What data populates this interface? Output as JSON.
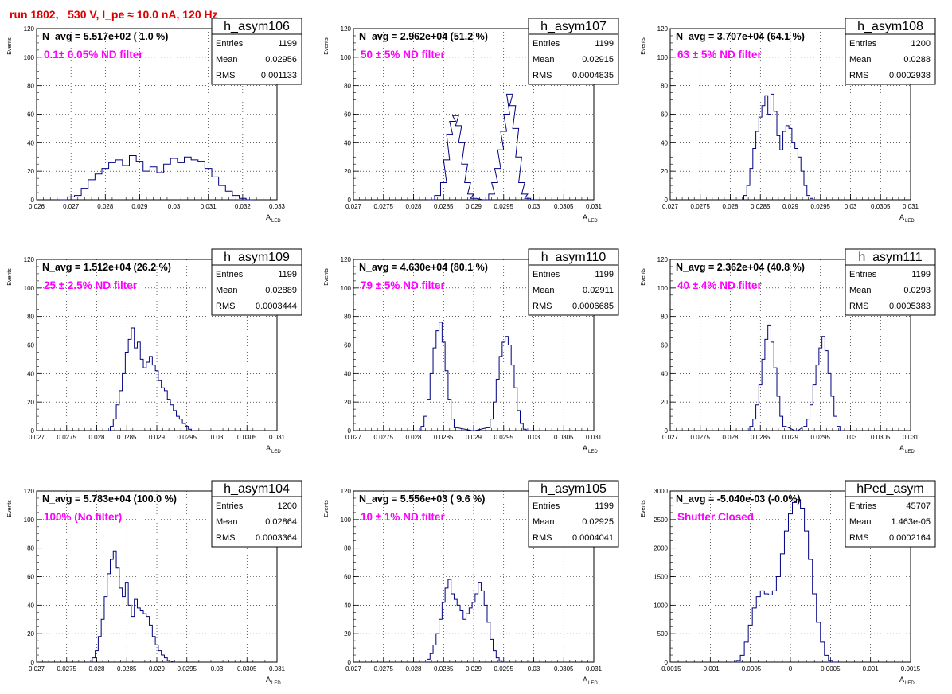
{
  "page": {
    "title": "run 1802,   530 V, I_pe ≈ 10.0 nA, 120 Hz"
  },
  "common": {
    "ylabel": "Events",
    "xlabel_main": "A",
    "xlabel_sub": "LED"
  },
  "stats_labels": [
    "Entries",
    "Mean",
    "RMS"
  ],
  "colors": {
    "hist": "#000080",
    "title": "#e00000",
    "annotation": "#ff00ff"
  },
  "chart_data": [
    {
      "type": "histogram",
      "name": "h_asym106",
      "n_avg": "N_avg = 5.517e+02 ( 1.0 %)",
      "filter": "0.1± 0.05% ND filter",
      "entries": "1199",
      "mean": "0.02956",
      "rms": "0.001133",
      "xlim": [
        0.026,
        0.033
      ],
      "ylim": [
        0,
        120
      ],
      "xticks": [
        "0.026",
        "0.027",
        "0.028",
        "0.029",
        "0.03",
        "0.031",
        "0.032",
        "0.033"
      ],
      "yticks": [
        "0",
        "20",
        "40",
        "60",
        "80",
        "100",
        "120"
      ],
      "points": [
        [
          0.0268,
          0
        ],
        [
          0.027,
          2
        ],
        [
          0.0272,
          3
        ],
        [
          0.0274,
          8
        ],
        [
          0.0276,
          14
        ],
        [
          0.0278,
          18
        ],
        [
          0.028,
          22
        ],
        [
          0.0282,
          26
        ],
        [
          0.0284,
          28
        ],
        [
          0.0286,
          24
        ],
        [
          0.0288,
          31
        ],
        [
          0.029,
          27
        ],
        [
          0.0292,
          20
        ],
        [
          0.0294,
          23
        ],
        [
          0.0296,
          19
        ],
        [
          0.0298,
          25
        ],
        [
          0.03,
          29
        ],
        [
          0.0302,
          26
        ],
        [
          0.0304,
          30
        ],
        [
          0.0306,
          28
        ],
        [
          0.0308,
          27
        ],
        [
          0.031,
          22
        ],
        [
          0.0312,
          16
        ],
        [
          0.0314,
          10
        ],
        [
          0.0316,
          6
        ],
        [
          0.0318,
          3
        ],
        [
          0.032,
          1
        ],
        [
          0.0322,
          0
        ]
      ]
    },
    {
      "type": "histogram",
      "name": "h_asym107",
      "n_avg": "N_avg = 2.962e+04 (51.2 %)",
      "filter": "50 ± 5% ND filter",
      "entries": "1199",
      "mean": "0.02915",
      "rms": "0.0004835",
      "xlim": [
        0.027,
        0.031
      ],
      "ylim": [
        0,
        120
      ],
      "xticks": [
        "0.027",
        "0.0275",
        "0.028",
        "0.0285",
        "0.029",
        "0.0295",
        "0.03",
        "0.0305",
        "0.031"
      ],
      "yticks": [
        "0",
        "20",
        "40",
        "60",
        "80",
        "100",
        "120"
      ],
      "points": [
        [
          0.0283,
          0
        ],
        [
          0.0284,
          3
        ],
        [
          0.0285,
          12
        ],
        [
          0.02855,
          28
        ],
        [
          0.0286,
          46
        ],
        [
          0.02865,
          55
        ],
        [
          0.0287,
          59
        ],
        [
          0.02875,
          52
        ],
        [
          0.0288,
          40
        ],
        [
          0.02885,
          25
        ],
        [
          0.0289,
          12
        ],
        [
          0.02895,
          4
        ],
        [
          0.029,
          1
        ],
        [
          0.0292,
          0
        ],
        [
          0.0293,
          4
        ],
        [
          0.02935,
          12
        ],
        [
          0.0294,
          22
        ],
        [
          0.02945,
          35
        ],
        [
          0.0295,
          48
        ],
        [
          0.02955,
          60
        ],
        [
          0.0296,
          74
        ],
        [
          0.02965,
          66
        ],
        [
          0.0297,
          50
        ],
        [
          0.02975,
          30
        ],
        [
          0.0298,
          12
        ],
        [
          0.02985,
          4
        ],
        [
          0.0299,
          1
        ],
        [
          0.03,
          0
        ]
      ]
    },
    {
      "type": "histogram",
      "name": "h_asym108",
      "n_avg": "N_avg = 3.707e+04 (64.1 %)",
      "filter": "63 ± 5% ND filter",
      "entries": "1200",
      "mean": "0.0288",
      "rms": "0.0002938",
      "xlim": [
        0.027,
        0.031
      ],
      "ylim": [
        0,
        120
      ],
      "xticks": [
        "0.027",
        "0.0275",
        "0.028",
        "0.0285",
        "0.029",
        "0.0295",
        "0.03",
        "0.0305",
        "0.031"
      ],
      "yticks": [
        "0",
        "20",
        "40",
        "60",
        "80",
        "100",
        "120"
      ],
      "points": [
        [
          0.0282,
          0
        ],
        [
          0.02825,
          3
        ],
        [
          0.0283,
          10
        ],
        [
          0.02835,
          22
        ],
        [
          0.0284,
          36
        ],
        [
          0.02845,
          48
        ],
        [
          0.0285,
          58
        ],
        [
          0.02855,
          66
        ],
        [
          0.0286,
          73
        ],
        [
          0.02865,
          60
        ],
        [
          0.0287,
          74
        ],
        [
          0.02875,
          62
        ],
        [
          0.0288,
          45
        ],
        [
          0.02885,
          35
        ],
        [
          0.0289,
          48
        ],
        [
          0.02895,
          52
        ],
        [
          0.029,
          50
        ],
        [
          0.02905,
          40
        ],
        [
          0.0291,
          36
        ],
        [
          0.02915,
          30
        ],
        [
          0.0292,
          20
        ],
        [
          0.02925,
          10
        ],
        [
          0.0293,
          3
        ],
        [
          0.02935,
          1
        ],
        [
          0.0294,
          0
        ]
      ]
    },
    {
      "type": "histogram",
      "name": "h_asym109",
      "n_avg": "N_avg = 1.512e+04 (26.2 %)",
      "filter": "25 ± 2.5% ND filter",
      "entries": "1199",
      "mean": "0.02889",
      "rms": "0.0003444",
      "xlim": [
        0.027,
        0.031
      ],
      "ylim": [
        0,
        120
      ],
      "xticks": [
        "0.027",
        "0.0275",
        "0.028",
        "0.0285",
        "0.029",
        "0.0295",
        "0.03",
        "0.0305",
        "0.031"
      ],
      "yticks": [
        "0",
        "20",
        "40",
        "60",
        "80",
        "100",
        "120"
      ],
      "points": [
        [
          0.0282,
          0
        ],
        [
          0.02825,
          3
        ],
        [
          0.0283,
          8
        ],
        [
          0.02835,
          18
        ],
        [
          0.0284,
          28
        ],
        [
          0.02845,
          40
        ],
        [
          0.0285,
          55
        ],
        [
          0.02855,
          64
        ],
        [
          0.0286,
          72
        ],
        [
          0.02865,
          58
        ],
        [
          0.0287,
          62
        ],
        [
          0.02875,
          50
        ],
        [
          0.0288,
          44
        ],
        [
          0.02885,
          48
        ],
        [
          0.0289,
          52
        ],
        [
          0.02895,
          46
        ],
        [
          0.029,
          42
        ],
        [
          0.02905,
          35
        ],
        [
          0.0291,
          30
        ],
        [
          0.02915,
          28
        ],
        [
          0.0292,
          22
        ],
        [
          0.02925,
          18
        ],
        [
          0.0293,
          14
        ],
        [
          0.02935,
          10
        ],
        [
          0.0294,
          8
        ],
        [
          0.02945,
          5
        ],
        [
          0.0295,
          3
        ],
        [
          0.02955,
          1
        ],
        [
          0.0296,
          0
        ]
      ]
    },
    {
      "type": "histogram",
      "name": "h_asym110",
      "n_avg": "N_avg = 4.630e+04 (80.1 %)",
      "filter": "79 ± 5% ND filter",
      "entries": "1199",
      "mean": "0.02911",
      "rms": "0.0006685",
      "xlim": [
        0.027,
        0.031
      ],
      "ylim": [
        0,
        120
      ],
      "xticks": [
        "0.027",
        "0.0275",
        "0.028",
        "0.0285",
        "0.029",
        "0.0295",
        "0.03",
        "0.0305",
        "0.031"
      ],
      "yticks": [
        "0",
        "20",
        "40",
        "60",
        "80",
        "100",
        "120"
      ],
      "points": [
        [
          0.0281,
          0
        ],
        [
          0.02815,
          3
        ],
        [
          0.0282,
          10
        ],
        [
          0.02825,
          22
        ],
        [
          0.0283,
          40
        ],
        [
          0.02835,
          58
        ],
        [
          0.0284,
          70
        ],
        [
          0.02845,
          76
        ],
        [
          0.0285,
          62
        ],
        [
          0.02855,
          42
        ],
        [
          0.0286,
          22
        ],
        [
          0.02865,
          8
        ],
        [
          0.0287,
          2
        ],
        [
          0.029,
          0
        ],
        [
          0.02925,
          2
        ],
        [
          0.0293,
          8
        ],
        [
          0.02935,
          20
        ],
        [
          0.0294,
          36
        ],
        [
          0.02945,
          52
        ],
        [
          0.0295,
          62
        ],
        [
          0.02955,
          66
        ],
        [
          0.0296,
          60
        ],
        [
          0.02965,
          46
        ],
        [
          0.0297,
          30
        ],
        [
          0.02975,
          14
        ],
        [
          0.0298,
          5
        ],
        [
          0.02985,
          1
        ],
        [
          0.0299,
          0
        ]
      ]
    },
    {
      "type": "histogram",
      "name": "h_asym111",
      "n_avg": "N_avg = 2.362e+04 (40.8 %)",
      "filter": "40 ± 4% ND filter",
      "entries": "1199",
      "mean": "0.0293",
      "rms": "0.0005383",
      "xlim": [
        0.027,
        0.031
      ],
      "ylim": [
        0,
        120
      ],
      "xticks": [
        "0.027",
        "0.0275",
        "0.028",
        "0.0285",
        "0.029",
        "0.0295",
        "0.03",
        "0.0305",
        "0.031"
      ],
      "yticks": [
        "0",
        "20",
        "40",
        "60",
        "80",
        "100",
        "120"
      ],
      "points": [
        [
          0.0283,
          0
        ],
        [
          0.02835,
          3
        ],
        [
          0.0284,
          8
        ],
        [
          0.02845,
          18
        ],
        [
          0.0285,
          32
        ],
        [
          0.02855,
          50
        ],
        [
          0.0286,
          64
        ],
        [
          0.02865,
          74
        ],
        [
          0.0287,
          62
        ],
        [
          0.02875,
          44
        ],
        [
          0.0288,
          24
        ],
        [
          0.02885,
          10
        ],
        [
          0.0289,
          3
        ],
        [
          0.0291,
          0
        ],
        [
          0.02925,
          3
        ],
        [
          0.0293,
          8
        ],
        [
          0.02935,
          18
        ],
        [
          0.0294,
          32
        ],
        [
          0.02945,
          46
        ],
        [
          0.0295,
          58
        ],
        [
          0.02955,
          66
        ],
        [
          0.0296,
          56
        ],
        [
          0.02965,
          40
        ],
        [
          0.0297,
          24
        ],
        [
          0.02975,
          10
        ],
        [
          0.0298,
          3
        ],
        [
          0.02985,
          0
        ]
      ]
    },
    {
      "type": "histogram",
      "name": "h_asym104",
      "n_avg": "N_avg = 5.783e+04 (100.0 %)",
      "filter": "100% (No filter)",
      "entries": "1200",
      "mean": "0.02864",
      "rms": "0.0003364",
      "xlim": [
        0.027,
        0.031
      ],
      "ylim": [
        0,
        120
      ],
      "xticks": [
        "0.027",
        "0.0275",
        "0.028",
        "0.0285",
        "0.029",
        "0.0295",
        "0.03",
        "0.0305",
        "0.031"
      ],
      "yticks": [
        "0",
        "20",
        "40",
        "60",
        "80",
        "100",
        "120"
      ],
      "points": [
        [
          0.0279,
          0
        ],
        [
          0.02795,
          3
        ],
        [
          0.028,
          8
        ],
        [
          0.02805,
          18
        ],
        [
          0.0281,
          30
        ],
        [
          0.02815,
          46
        ],
        [
          0.0282,
          62
        ],
        [
          0.02825,
          72
        ],
        [
          0.0283,
          78
        ],
        [
          0.02835,
          66
        ],
        [
          0.0284,
          52
        ],
        [
          0.02845,
          46
        ],
        [
          0.0285,
          56
        ],
        [
          0.02855,
          40
        ],
        [
          0.0286,
          32
        ],
        [
          0.02865,
          44
        ],
        [
          0.0287,
          38
        ],
        [
          0.02875,
          36
        ],
        [
          0.0288,
          34
        ],
        [
          0.02885,
          32
        ],
        [
          0.0289,
          26
        ],
        [
          0.02895,
          18
        ],
        [
          0.029,
          12
        ],
        [
          0.02905,
          8
        ],
        [
          0.0291,
          5
        ],
        [
          0.02915,
          3
        ],
        [
          0.0292,
          1
        ],
        [
          0.0293,
          0
        ]
      ]
    },
    {
      "type": "histogram",
      "name": "h_asym105",
      "n_avg": "N_avg = 5.556e+03 ( 9.6 %)",
      "filter": "10 ± 1% ND filter",
      "entries": "1199",
      "mean": "0.02925",
      "rms": "0.0004041",
      "xlim": [
        0.027,
        0.031
      ],
      "ylim": [
        0,
        120
      ],
      "xticks": [
        "0.027",
        "0.0275",
        "0.028",
        "0.0285",
        "0.029",
        "0.0295",
        "0.03",
        "0.0305",
        "0.031"
      ],
      "yticks": [
        "0",
        "20",
        "40",
        "60",
        "80",
        "100",
        "120"
      ],
      "points": [
        [
          0.0282,
          0
        ],
        [
          0.02825,
          2
        ],
        [
          0.0283,
          6
        ],
        [
          0.02835,
          12
        ],
        [
          0.0284,
          20
        ],
        [
          0.02845,
          30
        ],
        [
          0.0285,
          42
        ],
        [
          0.02855,
          52
        ],
        [
          0.0286,
          58
        ],
        [
          0.02865,
          48
        ],
        [
          0.0287,
          44
        ],
        [
          0.02875,
          40
        ],
        [
          0.0288,
          36
        ],
        [
          0.02885,
          30
        ],
        [
          0.0289,
          34
        ],
        [
          0.02895,
          38
        ],
        [
          0.029,
          42
        ],
        [
          0.02905,
          48
        ],
        [
          0.0291,
          56
        ],
        [
          0.02915,
          50
        ],
        [
          0.0292,
          40
        ],
        [
          0.02925,
          28
        ],
        [
          0.0293,
          16
        ],
        [
          0.02935,
          8
        ],
        [
          0.0294,
          3
        ],
        [
          0.02945,
          1
        ],
        [
          0.0295,
          0
        ]
      ]
    },
    {
      "type": "histogram",
      "name": "hPed_asym",
      "n_avg": "N_avg = -5.040e-03 (-0.0%)",
      "filter": "Shutter Closed",
      "entries": "45707",
      "mean": "1.463e-05",
      "rms": "0.0002164",
      "xlim": [
        -0.0015,
        0.0015
      ],
      "ylim": [
        0,
        3000
      ],
      "xticks": [
        "-0.0015",
        "-0.001",
        "-0.0005",
        "0",
        "0.0005",
        "0.001",
        "0.0015"
      ],
      "yticks": [
        "0",
        "500",
        "1000",
        "1500",
        "2000",
        "2500",
        "3000"
      ],
      "points": [
        [
          -0.0007,
          0
        ],
        [
          -0.00065,
          30
        ],
        [
          -0.0006,
          120
        ],
        [
          -0.00055,
          350
        ],
        [
          -0.0005,
          650
        ],
        [
          -0.00045,
          950
        ],
        [
          -0.0004,
          1150
        ],
        [
          -0.00035,
          1250
        ],
        [
          -0.0003,
          1200
        ],
        [
          -0.00025,
          1180
        ],
        [
          -0.0002,
          1250
        ],
        [
          -0.00015,
          1500
        ],
        [
          -0.0001,
          1900
        ],
        [
          -5e-05,
          2300
        ],
        [
          0,
          2600
        ],
        [
          5e-05,
          2800
        ],
        [
          0.0001,
          2850
        ],
        [
          0.00015,
          2700
        ],
        [
          0.0002,
          2300
        ],
        [
          0.00025,
          1800
        ],
        [
          0.0003,
          1200
        ],
        [
          0.00035,
          700
        ],
        [
          0.0004,
          350
        ],
        [
          0.00045,
          120
        ],
        [
          0.0005,
          30
        ],
        [
          0.00055,
          0
        ]
      ]
    }
  ]
}
